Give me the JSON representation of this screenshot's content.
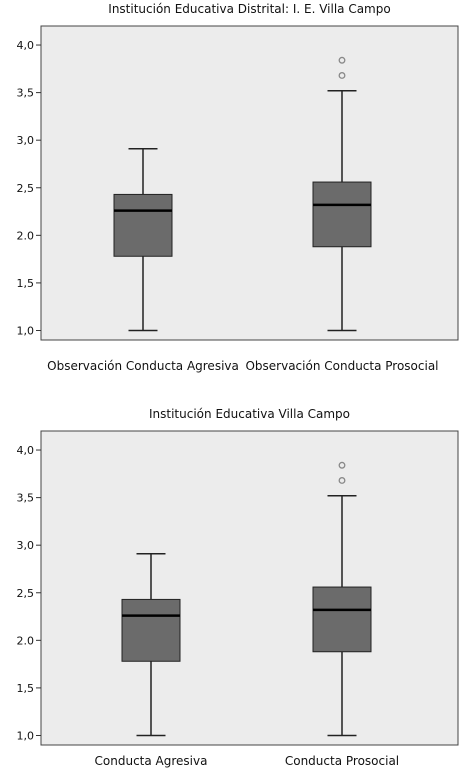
{
  "chart_data": [
    {
      "type": "box",
      "title": "Institución Educativa Distrital: I. E. Villa Campo",
      "ylim": [
        0.9,
        4.2
      ],
      "yticks": [
        1.0,
        1.5,
        2.0,
        2.5,
        3.0,
        3.5,
        4.0
      ],
      "ytick_labels": [
        "1,0",
        "1,5",
        "2.0",
        "2,5",
        "3,0",
        "3,5",
        "4,0"
      ],
      "grid": false,
      "categories": [
        "Observación Conducta Agresiva",
        "Observación Conducta Prosocial"
      ],
      "boxes": [
        {
          "min": 1.0,
          "q1": 1.78,
          "median": 2.26,
          "q3": 2.43,
          "max": 2.91,
          "outliers": []
        },
        {
          "min": 1.0,
          "q1": 1.88,
          "median": 2.32,
          "q3": 2.56,
          "max": 3.52,
          "outliers": [
            3.68,
            3.84
          ]
        }
      ]
    },
    {
      "type": "box",
      "title": "Institución Educativa Villa Campo",
      "ylim": [
        0.9,
        4.2
      ],
      "yticks": [
        1.0,
        1.5,
        2.0,
        2.5,
        3.0,
        3.5,
        4.0
      ],
      "ytick_labels": [
        "1,0",
        "1,5",
        "2.0",
        "2,5",
        "3,0",
        "3,5",
        "4,0"
      ],
      "grid": false,
      "categories": [
        "Conducta Agresiva",
        "Conducta Prosocial"
      ],
      "boxes": [
        {
          "min": 1.0,
          "q1": 1.78,
          "median": 2.26,
          "q3": 2.43,
          "max": 2.91,
          "outliers": []
        },
        {
          "min": 1.0,
          "q1": 1.88,
          "median": 2.32,
          "q3": 2.56,
          "max": 3.52,
          "outliers": [
            3.68,
            3.84
          ]
        }
      ]
    }
  ],
  "colors": {
    "plot_background": "#ececec",
    "box_fill": "#6b6b6b",
    "line": "#222222",
    "outlier": "#888888"
  }
}
